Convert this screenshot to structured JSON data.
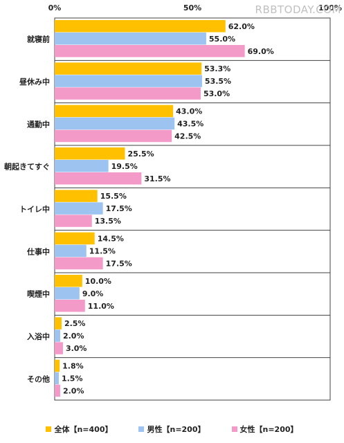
{
  "watermark": "RBBTODAY.COM",
  "chart_data": {
    "type": "bar",
    "orientation": "horizontal",
    "xlim": [
      0,
      100
    ],
    "xticks": [
      "0%",
      "50%",
      "100%"
    ],
    "categories": [
      "就寝前",
      "昼休み中",
      "通勤中",
      "朝起きてすぐ",
      "トイレ中",
      "仕事中",
      "喫煙中",
      "入浴中",
      "その他"
    ],
    "series": [
      {
        "name": "全体【n=400】",
        "color": "#ffc000",
        "values": [
          62.0,
          53.3,
          43.0,
          25.5,
          15.5,
          14.5,
          10.0,
          2.5,
          1.8
        ]
      },
      {
        "name": "男性【n=200】",
        "color": "#9dc3f0",
        "values": [
          55.0,
          53.5,
          43.5,
          19.5,
          17.5,
          11.5,
          9.0,
          2.0,
          1.5
        ]
      },
      {
        "name": "女性【n=200】",
        "color": "#f49ac8",
        "values": [
          69.0,
          53.0,
          42.5,
          31.5,
          13.5,
          17.5,
          11.0,
          3.0,
          2.0
        ]
      }
    ],
    "grid": false,
    "legend_position": "bottom"
  }
}
